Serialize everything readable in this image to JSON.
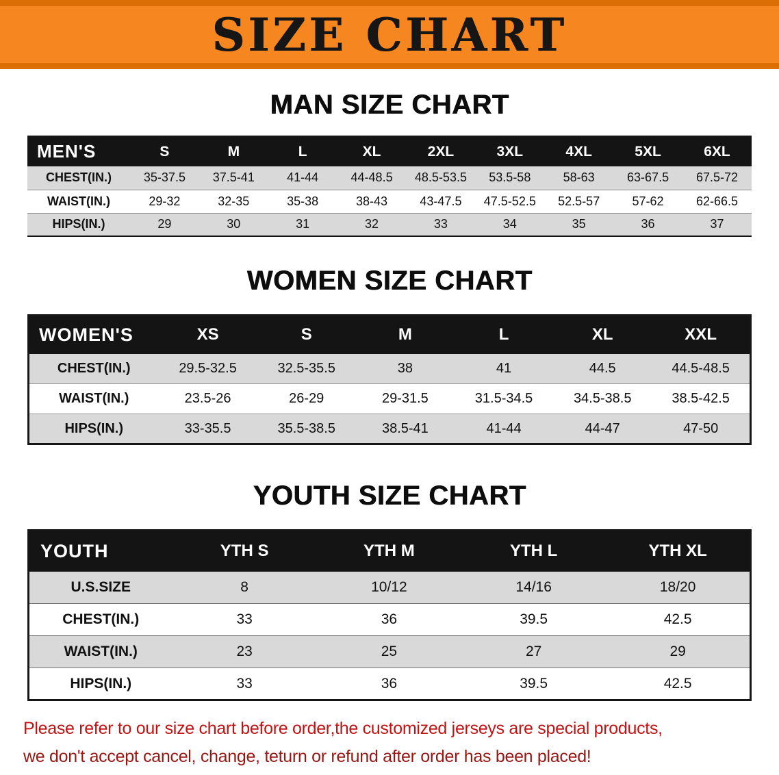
{
  "banner": {
    "title": "SIZE CHART"
  },
  "men": {
    "heading": "MAN SIZE CHART",
    "corner": "MEN'S",
    "columns": [
      "S",
      "M",
      "L",
      "XL",
      "2XL",
      "3XL",
      "4XL",
      "5XL",
      "6XL"
    ],
    "rows": [
      {
        "label": "CHEST(IN.)",
        "values": [
          "35-37.5",
          "37.5-41",
          "41-44",
          "44-48.5",
          "48.5-53.5",
          "53.5-58",
          "58-63",
          "63-67.5",
          "67.5-72"
        ]
      },
      {
        "label": "WAIST(IN.)",
        "values": [
          "29-32",
          "32-35",
          "35-38",
          "38-43",
          "43-47.5",
          "47.5-52.5",
          "52.5-57",
          "57-62",
          "62-66.5"
        ]
      },
      {
        "label": "HIPS(IN.)",
        "values": [
          "29",
          "30",
          "31",
          "32",
          "33",
          "34",
          "35",
          "36",
          "37"
        ]
      }
    ]
  },
  "women": {
    "heading": "WOMEN SIZE CHART",
    "corner": "WOMEN'S",
    "columns": [
      "XS",
      "S",
      "M",
      "L",
      "XL",
      "XXL"
    ],
    "rows": [
      {
        "label": "CHEST(IN.)",
        "values": [
          "29.5-32.5",
          "32.5-35.5",
          "38",
          "41",
          "44.5",
          "44.5-48.5"
        ]
      },
      {
        "label": "WAIST(IN.)",
        "values": [
          "23.5-26",
          "26-29",
          "29-31.5",
          "31.5-34.5",
          "34.5-38.5",
          "38.5-42.5"
        ]
      },
      {
        "label": "HIPS(IN.)",
        "values": [
          "33-35.5",
          "35.5-38.5",
          "38.5-41",
          "41-44",
          "44-47",
          "47-50"
        ]
      }
    ]
  },
  "youth": {
    "heading": "YOUTH SIZE CHART",
    "corner": "YOUTH",
    "columns": [
      "YTH S",
      "YTH M",
      "YTH L",
      "YTH XL"
    ],
    "rows": [
      {
        "label": "U.S.SIZE",
        "values": [
          "8",
          "10/12",
          "14/16",
          "18/20"
        ]
      },
      {
        "label": "CHEST(IN.)",
        "values": [
          "33",
          "36",
          "39.5",
          "42.5"
        ]
      },
      {
        "label": "WAIST(IN.)",
        "values": [
          "23",
          "25",
          "27",
          "29"
        ]
      },
      {
        "label": "HIPS(IN.)",
        "values": [
          "33",
          "36",
          "39.5",
          "42.5"
        ]
      }
    ]
  },
  "footer": {
    "line1": "Please refer to our size chart before order,the customized jerseys are special products,",
    "line2": "we don't accept cancel, change, teturn or refund after order has been placed!"
  },
  "colors": {
    "banner-bg": "#F6861F",
    "banner-edge": "#DB6E04",
    "header-bg": "#141414",
    "header-text": "#FFFFFF",
    "row-gray": "#D9D9D9",
    "text-black": "#111111",
    "footer-red-1": "#C01414",
    "footer-red-2": "#971713"
  }
}
